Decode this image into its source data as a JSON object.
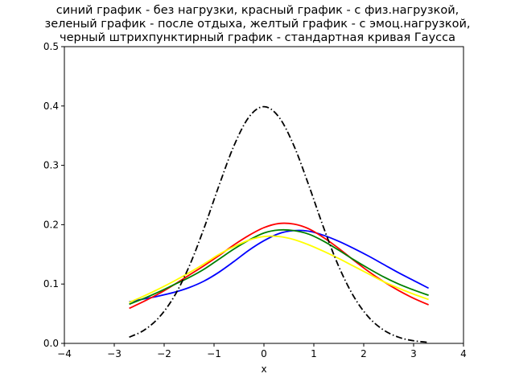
{
  "chart_data": {
    "type": "line",
    "title": [
      "синий график - без нагрузки, красный график - с физ.нагрузкой,",
      "зеленый график - после отдыха, желтый график - с эмоц.нагрузкой,",
      "черный штрихпунктирный график - стандартная кривая Гаусса"
    ],
    "xlabel": "x",
    "ylabel": "",
    "xlim": [
      -4,
      4
    ],
    "ylim": [
      0,
      0.5
    ],
    "xticks": [
      -4,
      -3,
      -2,
      -1,
      0,
      1,
      2,
      3,
      4
    ],
    "xtick_labels": [
      "−4",
      "−3",
      "−2",
      "−1",
      "0",
      "1",
      "2",
      "3",
      "4"
    ],
    "yticks": [
      0,
      0.1,
      0.2,
      0.3,
      0.4,
      0.5
    ],
    "ytick_labels": [
      "0.0",
      "0.1",
      "0.2",
      "0.3",
      "0.4",
      "0.5"
    ],
    "grid": false,
    "legend": null,
    "x": [
      -2.7,
      -2.4,
      -2.1,
      -1.8,
      -1.5,
      -1.2,
      -0.9,
      -0.6,
      -0.3,
      0.0,
      0.3,
      0.6,
      0.9,
      1.2,
      1.5,
      1.8,
      2.1,
      2.4,
      2.7,
      3.0,
      3.3
    ],
    "series": [
      {
        "color": "#0000ff",
        "style": "solid",
        "values": [
          0.07,
          0.075,
          0.08,
          0.086,
          0.094,
          0.105,
          0.12,
          0.138,
          0.157,
          0.173,
          0.185,
          0.19,
          0.189,
          0.182,
          0.172,
          0.16,
          0.147,
          0.133,
          0.119,
          0.106,
          0.093
        ]
      },
      {
        "color": "#ff0000",
        "style": "solid",
        "values": [
          0.059,
          0.071,
          0.084,
          0.099,
          0.115,
          0.131,
          0.148,
          0.166,
          0.182,
          0.195,
          0.202,
          0.201,
          0.193,
          0.178,
          0.16,
          0.14,
          0.121,
          0.104,
          0.089,
          0.076,
          0.065
        ]
      },
      {
        "color": "#008000",
        "style": "solid",
        "values": [
          0.066,
          0.076,
          0.087,
          0.099,
          0.111,
          0.125,
          0.142,
          0.159,
          0.174,
          0.186,
          0.191,
          0.19,
          0.184,
          0.172,
          0.157,
          0.141,
          0.126,
          0.112,
          0.1,
          0.09,
          0.081
        ]
      },
      {
        "color": "#ffff00",
        "style": "solid",
        "values": [
          0.069,
          0.08,
          0.092,
          0.105,
          0.119,
          0.134,
          0.15,
          0.163,
          0.174,
          0.18,
          0.18,
          0.175,
          0.166,
          0.155,
          0.143,
          0.13,
          0.117,
          0.104,
          0.093,
          0.083,
          0.074
        ]
      },
      {
        "color": "#000000",
        "style": "dashdot",
        "values": [
          0.0104,
          0.0224,
          0.044,
          0.079,
          0.1295,
          0.1942,
          0.2661,
          0.3332,
          0.3814,
          0.3989,
          0.3814,
          0.3332,
          0.2661,
          0.1942,
          0.1295,
          0.079,
          0.044,
          0.0224,
          0.0104,
          0.0044,
          0.0017
        ]
      }
    ]
  }
}
